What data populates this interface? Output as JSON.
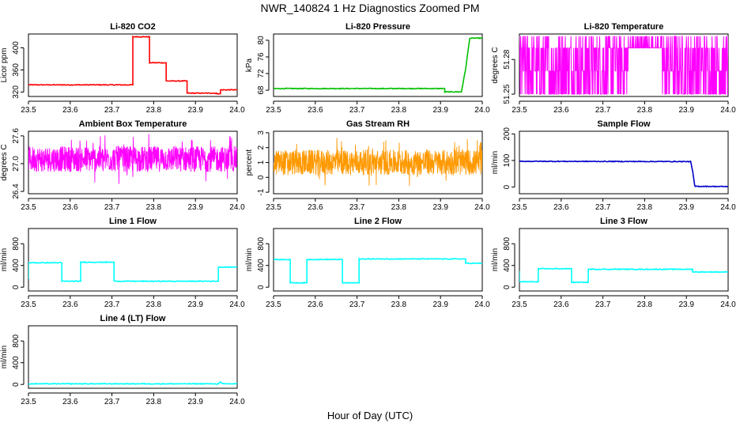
{
  "figure": {
    "title": "NWR_140824  1 Hz Diagnostics Zoomed PM",
    "xlabel": "Hour of Day (UTC)"
  },
  "chart_data": [
    {
      "type": "line",
      "title": "Li-820 CO2",
      "ylabel": "Licor ppm",
      "color": "#ff0000",
      "xlim": [
        23.5,
        24.0
      ],
      "ylim": [
        312,
        425
      ],
      "xticks": [
        "23.5",
        "23.6",
        "23.7",
        "23.8",
        "23.9",
        "24.0"
      ],
      "yticks": [
        {
          "v": 320,
          "label": "320"
        },
        {
          "v": 360,
          "label": "360"
        },
        {
          "v": 400,
          "label": "400"
        }
      ],
      "x": [
        23.5,
        23.68,
        23.75,
        23.75,
        23.79,
        23.79,
        23.83,
        23.83,
        23.88,
        23.88,
        23.95,
        23.95,
        23.96,
        23.96,
        24.0
      ],
      "y": [
        333,
        333,
        333,
        420,
        420,
        373,
        373,
        340,
        340,
        318,
        318,
        317,
        317,
        324,
        324
      ]
    },
    {
      "type": "line",
      "title": "Li-820 Pressure",
      "ylabel": "kPa",
      "color": "#00c000",
      "xlim": [
        23.5,
        24.0
      ],
      "ylim": [
        66.5,
        81.5
      ],
      "xticks": [
        "23.5",
        "23.6",
        "23.7",
        "23.8",
        "23.9",
        "24.0"
      ],
      "yticks": [
        {
          "v": 68,
          "label": "68"
        },
        {
          "v": 72,
          "label": "72"
        },
        {
          "v": 76,
          "label": "76"
        },
        {
          "v": 80,
          "label": "80"
        }
      ],
      "x": [
        23.5,
        23.91,
        23.91,
        23.95,
        23.96,
        23.97,
        24.0
      ],
      "y": [
        68.4,
        68.4,
        67.6,
        67.6,
        73,
        80.5,
        80.5
      ]
    },
    {
      "type": "line",
      "title": "Li-820 Temperature",
      "ylabel": "degrees C",
      "color": "#ff00ff",
      "xlim": [
        23.5,
        24.0
      ],
      "ylim": [
        51.248,
        51.302
      ],
      "xticks": [
        "23.5",
        "23.6",
        "23.7",
        "23.8",
        "23.9",
        "24.0"
      ],
      "yticks": [
        {
          "v": 51.25,
          "label": "51.25"
        },
        {
          "v": 51.28,
          "label": "51.28"
        }
      ],
      "levels": [
        51.25,
        51.27,
        51.29,
        51.3
      ],
      "quiet_interval": [
        23.76,
        23.84
      ]
    },
    {
      "type": "line",
      "title": "Ambient Box Temperature",
      "ylabel": "degrees C",
      "color": "#ff00ff",
      "xlim": [
        23.5,
        24.0
      ],
      "ylim": [
        26.35,
        27.7
      ],
      "xticks": [
        "23.5",
        "23.6",
        "23.7",
        "23.8",
        "23.9",
        "24.0"
      ],
      "yticks": [
        {
          "v": 26.4,
          "label": "26.4"
        },
        {
          "v": 27.0,
          "label": "27.0"
        },
        {
          "v": 27.6,
          "label": "27.6"
        }
      ],
      "mean": 27.1,
      "range": [
        26.42,
        27.65
      ]
    },
    {
      "type": "line",
      "title": "Gas Stream RH",
      "ylabel": "percent",
      "color": "#ff9900",
      "xlim": [
        23.5,
        24.0
      ],
      "ylim": [
        -1.1,
        3.1
      ],
      "xticks": [
        "23.5",
        "23.6",
        "23.7",
        "23.8",
        "23.9",
        "24.0"
      ],
      "yticks": [
        {
          "v": -1,
          "label": "-1"
        },
        {
          "v": 0,
          "label": "0"
        },
        {
          "v": 1,
          "label": "1"
        },
        {
          "v": 2,
          "label": "2"
        },
        {
          "v": 3,
          "label": "3"
        }
      ],
      "mean": 1.0,
      "range": [
        -0.9,
        2.9
      ]
    },
    {
      "type": "line",
      "title": "Sample Flow",
      "ylabel": "ml/min",
      "color": "#0000cc",
      "xlim": [
        23.5,
        24.0
      ],
      "ylim": [
        -25,
        210
      ],
      "xticks": [
        "23.5",
        "23.6",
        "23.7",
        "23.8",
        "23.9",
        "24.0"
      ],
      "yticks": [
        {
          "v": 0,
          "label": "0"
        },
        {
          "v": 100,
          "label": "100"
        },
        {
          "v": 200,
          "label": "200"
        }
      ],
      "x": [
        23.5,
        23.91,
        23.915,
        23.92,
        24.0
      ],
      "y": [
        97,
        96,
        60,
        3,
        2
      ]
    },
    {
      "type": "line",
      "title": "Line 1 Flow",
      "ylabel": "ml/min",
      "color": "#00ffff",
      "xlim": [
        23.5,
        24.0
      ],
      "ylim": [
        -70,
        1080
      ],
      "xticks": [
        "23.5",
        "23.6",
        "23.7",
        "23.8",
        "23.9",
        "24.0"
      ],
      "yticks": [
        {
          "v": 0,
          "label": "0"
        },
        {
          "v": 400,
          "label": "400"
        },
        {
          "v": 800,
          "label": "800"
        }
      ],
      "x": [
        23.5,
        23.5,
        23.58,
        23.58,
        23.625,
        23.625,
        23.705,
        23.705,
        23.955,
        23.955,
        24.0
      ],
      "y": [
        150,
        450,
        450,
        110,
        110,
        460,
        460,
        110,
        110,
        370,
        370
      ]
    },
    {
      "type": "line",
      "title": "Line 2 Flow",
      "ylabel": "ml/min",
      "color": "#00ffff",
      "xlim": [
        23.5,
        24.0
      ],
      "ylim": [
        -70,
        1080
      ],
      "xticks": [
        "23.5",
        "23.6",
        "23.7",
        "23.8",
        "23.9",
        "24.0"
      ],
      "yticks": [
        {
          "v": 0,
          "label": "0"
        },
        {
          "v": 400,
          "label": "400"
        },
        {
          "v": 800,
          "label": "800"
        }
      ],
      "x": [
        23.5,
        23.54,
        23.54,
        23.58,
        23.58,
        23.665,
        23.665,
        23.705,
        23.705,
        23.96,
        23.96,
        24.0
      ],
      "y": [
        510,
        510,
        80,
        80,
        510,
        510,
        80,
        80,
        520,
        520,
        440,
        440
      ]
    },
    {
      "type": "line",
      "title": "Line 3 Flow",
      "ylabel": "ml/min",
      "color": "#00ffff",
      "xlim": [
        23.5,
        24.0
      ],
      "ylim": [
        -70,
        1080
      ],
      "xticks": [
        "23.5",
        "23.6",
        "23.7",
        "23.8",
        "23.9",
        "24.0"
      ],
      "yticks": [
        {
          "v": 0,
          "label": "0"
        },
        {
          "v": 400,
          "label": "400"
        },
        {
          "v": 800,
          "label": "800"
        }
      ],
      "x": [
        23.5,
        23.5,
        23.545,
        23.545,
        23.625,
        23.625,
        23.665,
        23.665,
        23.915,
        23.915,
        24.0
      ],
      "y": [
        300,
        100,
        100,
        340,
        340,
        90,
        90,
        330,
        330,
        280,
        280
      ]
    },
    {
      "type": "line",
      "title": "Line 4 (LT) Flow",
      "ylabel": "ml/min",
      "color": "#00ffff",
      "xlim": [
        23.5,
        24.0
      ],
      "ylim": [
        -70,
        1080
      ],
      "xticks": [
        "23.5",
        "23.6",
        "23.7",
        "23.8",
        "23.9",
        "24.0"
      ],
      "yticks": [
        {
          "v": 0,
          "label": "0"
        },
        {
          "v": 400,
          "label": "400"
        },
        {
          "v": 800,
          "label": "800"
        }
      ],
      "x": [
        23.5,
        23.955,
        23.96,
        23.965,
        24.0
      ],
      "y": [
        12,
        12,
        40,
        12,
        12
      ]
    }
  ]
}
